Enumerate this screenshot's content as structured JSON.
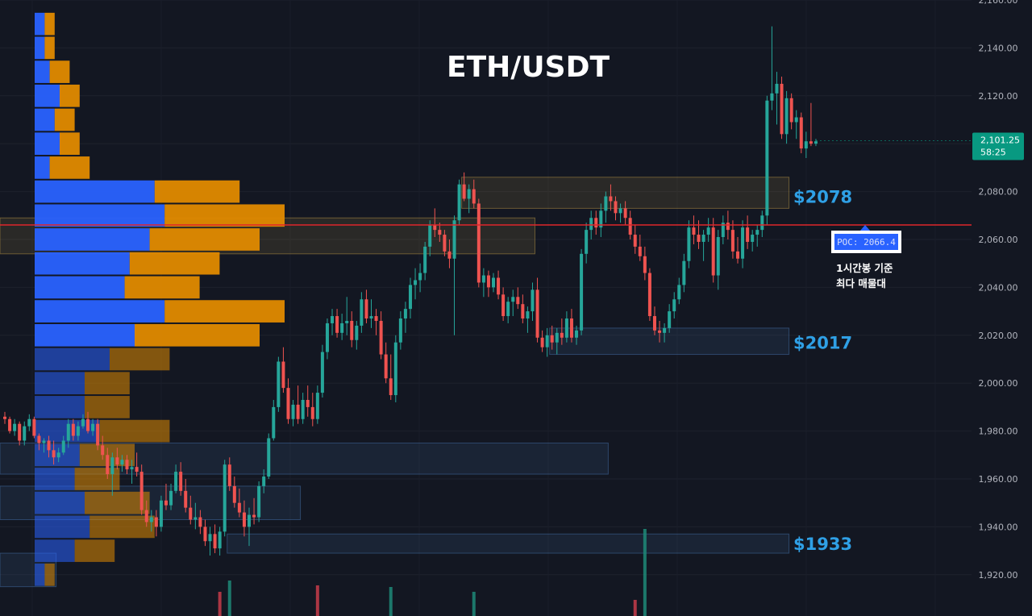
{
  "chart_data": {
    "type": "candlestick",
    "title": "ETH/USDT",
    "symbol": "ETH/USDT",
    "ylim": [
      1910,
      2160
    ],
    "y_ticks": [
      "2,160.00",
      "2,140.00",
      "2,120.00",
      "2,100.00",
      "2,080.00",
      "2,060.00",
      "2,040.00",
      "2,020.00",
      "2,000.00",
      "1,980.00",
      "1,960.00",
      "1,940.00",
      "1,920.00"
    ],
    "y_tick_values": [
      2160,
      2140,
      2120,
      2100,
      2080,
      2060,
      2040,
      2020,
      2000,
      1980,
      1960,
      1940,
      1920
    ],
    "grid": true,
    "current_price": {
      "label": "2,101.25",
      "timer": "58:25",
      "value": 2101.25,
      "color": "#089981"
    },
    "poc": {
      "label": "POC: 2066.4",
      "value": 2066.4,
      "note_line1": "1시간봉 기준",
      "note_line2": "최다 매물대"
    },
    "zone_labels": [
      {
        "text": "$2078",
        "value": 2078
      },
      {
        "text": "$2017",
        "value": 2017
      },
      {
        "text": "$1933",
        "value": 1933
      }
    ],
    "zones": [
      {
        "top": 2086,
        "bottom": 2073,
        "x_from_candle": 94,
        "x_to_candle": 160,
        "color": "#c9a34a"
      },
      {
        "top": 2069,
        "bottom": 2054,
        "x_from_candle": 0,
        "x_to_candle": 108,
        "color": "#c9a34a"
      },
      {
        "top": 2023,
        "bottom": 2012,
        "x_from_candle": 112,
        "x_to_candle": 160,
        "color": "#4a7ab8"
      },
      {
        "top": 1975,
        "bottom": 1962,
        "x_from_candle": 0,
        "x_to_candle": 123,
        "color": "#4a7ab8"
      },
      {
        "top": 1957,
        "bottom": 1943,
        "x_from_candle": 0,
        "x_to_candle": 60,
        "color": "#4a7ab8"
      },
      {
        "top": 1937,
        "bottom": 1929,
        "x_from_candle": 46,
        "x_to_candle": 160,
        "color": "#4a7ab8"
      },
      {
        "top": 1929,
        "bottom": 1915,
        "x_from_candle": 0,
        "x_to_candle": 10,
        "color": "#4a7ab8"
      }
    ],
    "volume_profile": {
      "bucket_size": 10,
      "price_low": 1915,
      "price_high": 2155,
      "rows_from_bottom": [
        {
          "buy": 2,
          "sell": 2
        },
        {
          "buy": 8,
          "sell": 8
        },
        {
          "buy": 11,
          "sell": 13
        },
        {
          "buy": 10,
          "sell": 13
        },
        {
          "buy": 8,
          "sell": 9
        },
        {
          "buy": 9,
          "sell": 11
        },
        {
          "buy": 13,
          "sell": 14
        },
        {
          "buy": 10,
          "sell": 9
        },
        {
          "buy": 10,
          "sell": 9
        },
        {
          "buy": 15,
          "sell": 12
        },
        {
          "buy": 20,
          "sell": 25
        },
        {
          "buy": 26,
          "sell": 24
        },
        {
          "buy": 18,
          "sell": 15
        },
        {
          "buy": 19,
          "sell": 18
        },
        {
          "buy": 23,
          "sell": 22
        },
        {
          "buy": 26,
          "sell": 24
        },
        {
          "buy": 24,
          "sell": 17
        },
        {
          "buy": 3,
          "sell": 8
        },
        {
          "buy": 5,
          "sell": 4
        },
        {
          "buy": 4,
          "sell": 4
        },
        {
          "buy": 5,
          "sell": 4
        },
        {
          "buy": 3,
          "sell": 4
        },
        {
          "buy": 2,
          "sell": 2
        },
        {
          "buy": 2,
          "sell": 2
        }
      ]
    },
    "candles": [
      [
        1986,
        1988,
        1983,
        1985
      ],
      [
        1985,
        1986,
        1979,
        1980
      ],
      [
        1980,
        1985,
        1978,
        1983
      ],
      [
        1983,
        1984,
        1974,
        1976
      ],
      [
        1976,
        1984,
        1974,
        1982
      ],
      [
        1982,
        1987,
        1980,
        1985
      ],
      [
        1985,
        1986,
        1977,
        1978
      ],
      [
        1978,
        1979,
        1972,
        1975
      ],
      [
        1975,
        1977,
        1971,
        1976
      ],
      [
        1976,
        1978,
        1969,
        1972
      ],
      [
        1972,
        1976,
        1966,
        1969
      ],
      [
        1969,
        1973,
        1967,
        1971
      ],
      [
        1971,
        1978,
        1970,
        1976
      ],
      [
        1976,
        1985,
        1973,
        1983
      ],
      [
        1983,
        1985,
        1976,
        1978
      ],
      [
        1978,
        1984,
        1976,
        1982
      ],
      [
        1982,
        1987,
        1981,
        1985
      ],
      [
        1985,
        1988,
        1979,
        1980
      ],
      [
        1980,
        1985,
        1978,
        1983
      ],
      [
        1983,
        1985,
        1972,
        1974
      ],
      [
        1974,
        1978,
        1968,
        1970
      ],
      [
        1970,
        1973,
        1960,
        1962
      ],
      [
        1962,
        1971,
        1953,
        1969
      ],
      [
        1969,
        1973,
        1964,
        1966
      ],
      [
        1966,
        1970,
        1963,
        1968
      ],
      [
        1968,
        1970,
        1962,
        1964
      ],
      [
        1964,
        1968,
        1958,
        1965
      ],
      [
        1965,
        1971,
        1961,
        1963
      ],
      [
        1963,
        1966,
        1945,
        1947
      ],
      [
        1947,
        1951,
        1940,
        1942
      ],
      [
        1942,
        1947,
        1938,
        1944
      ],
      [
        1944,
        1947,
        1936,
        1940
      ],
      [
        1940,
        1953,
        1938,
        1951
      ],
      [
        1951,
        1958,
        1947,
        1949
      ],
      [
        1949,
        1958,
        1947,
        1955
      ],
      [
        1955,
        1966,
        1954,
        1963
      ],
      [
        1963,
        1967,
        1953,
        1955
      ],
      [
        1955,
        1960,
        1946,
        1948
      ],
      [
        1948,
        1953,
        1941,
        1943
      ],
      [
        1943,
        1950,
        1939,
        1944
      ],
      [
        1944,
        1947,
        1937,
        1940
      ],
      [
        1940,
        1943,
        1932,
        1934
      ],
      [
        1934,
        1940,
        1928,
        1937
      ],
      [
        1937,
        1941,
        1929,
        1931
      ],
      [
        1931,
        1940,
        1928,
        1938
      ],
      [
        1938,
        1968,
        1936,
        1966
      ],
      [
        1966,
        1969,
        1955,
        1957
      ],
      [
        1957,
        1961,
        1948,
        1950
      ],
      [
        1950,
        1956,
        1944,
        1946
      ],
      [
        1946,
        1951,
        1936,
        1940
      ],
      [
        1940,
        1948,
        1932,
        1945
      ],
      [
        1945,
        1952,
        1941,
        1944
      ],
      [
        1944,
        1959,
        1942,
        1957
      ],
      [
        1957,
        1964,
        1954,
        1961
      ],
      [
        1961,
        1979,
        1960,
        1977
      ],
      [
        1977,
        1993,
        1976,
        1990
      ],
      [
        1990,
        2011,
        1988,
        2009
      ],
      [
        2009,
        2015,
        1996,
        1998
      ],
      [
        1998,
        2002,
        1983,
        1985
      ],
      [
        1985,
        1993,
        1982,
        1991
      ],
      [
        1991,
        1999,
        1983,
        1985
      ],
      [
        1985,
        1996,
        1983,
        1993
      ],
      [
        1993,
        1999,
        1986,
        1990
      ],
      [
        1990,
        1996,
        1982,
        1985
      ],
      [
        1985,
        1999,
        1983,
        1996
      ],
      [
        1996,
        2016,
        1994,
        2013
      ],
      [
        2013,
        2027,
        2010,
        2025
      ],
      [
        2025,
        2031,
        2020,
        2028
      ],
      [
        2028,
        2031,
        2019,
        2021
      ],
      [
        2021,
        2029,
        2018,
        2025
      ],
      [
        2025,
        2036,
        2020,
        2026
      ],
      [
        2026,
        2030,
        2015,
        2018
      ],
      [
        2018,
        2026,
        2014,
        2024
      ],
      [
        2024,
        2038,
        2021,
        2035
      ],
      [
        2035,
        2039,
        2025,
        2027
      ],
      [
        2027,
        2035,
        2023,
        2028
      ],
      [
        2028,
        2031,
        2020,
        2026
      ],
      [
        2026,
        2030,
        2010,
        2012
      ],
      [
        2012,
        2017,
        2000,
        2002
      ],
      [
        2002,
        2012,
        1993,
        1995
      ],
      [
        1995,
        2020,
        1992,
        2017
      ],
      [
        2017,
        2030,
        2014,
        2027
      ],
      [
        2027,
        2034,
        2021,
        2031
      ],
      [
        2031,
        2044,
        2027,
        2041
      ],
      [
        2041,
        2048,
        2035,
        2043
      ],
      [
        2043,
        2050,
        2038,
        2046
      ],
      [
        2046,
        2059,
        2043,
        2057
      ],
      [
        2057,
        2068,
        2053,
        2066
      ],
      [
        2066,
        2073,
        2061,
        2064
      ],
      [
        2064,
        2067,
        2059,
        2062
      ],
      [
        2062,
        2064,
        2053,
        2055
      ],
      [
        2055,
        2060,
        2048,
        2052
      ],
      [
        2052,
        2070,
        2020,
        2068
      ],
      [
        2068,
        2085,
        2066,
        2083
      ],
      [
        2083,
        2088,
        2076,
        2077
      ],
      [
        2077,
        2083,
        2071,
        2081
      ],
      [
        2081,
        2085,
        2073,
        2075
      ],
      [
        2075,
        2077,
        2040,
        2042
      ],
      [
        2042,
        2048,
        2036,
        2045
      ],
      [
        2045,
        2047,
        2036,
        2040
      ],
      [
        2040,
        2046,
        2038,
        2044
      ],
      [
        2044,
        2047,
        2035,
        2037
      ],
      [
        2037,
        2040,
        2026,
        2028
      ],
      [
        2028,
        2036,
        2025,
        2034
      ],
      [
        2034,
        2039,
        2028,
        2036
      ],
      [
        2036,
        2040,
        2031,
        2033
      ],
      [
        2033,
        2037,
        2025,
        2027
      ],
      [
        2027,
        2032,
        2021,
        2030
      ],
      [
        2030,
        2042,
        2026,
        2039
      ],
      [
        2039,
        2044,
        2017,
        2019
      ],
      [
        2019,
        2022,
        2013,
        2015
      ],
      [
        2015,
        2023,
        2011,
        2020
      ],
      [
        2020,
        2024,
        2014,
        2017
      ],
      [
        2017,
        2023,
        2012,
        2021
      ],
      [
        2021,
        2027,
        2016,
        2019
      ],
      [
        2019,
        2030,
        2017,
        2027
      ],
      [
        2027,
        2031,
        2017,
        2019
      ],
      [
        2019,
        2024,
        2016,
        2022
      ],
      [
        2022,
        2056,
        2020,
        2054
      ],
      [
        2054,
        2067,
        2050,
        2064
      ],
      [
        2064,
        2072,
        2060,
        2069
      ],
      [
        2069,
        2072,
        2062,
        2065
      ],
      [
        2065,
        2075,
        2061,
        2072
      ],
      [
        2072,
        2080,
        2067,
        2078
      ],
      [
        2078,
        2083,
        2072,
        2076
      ],
      [
        2076,
        2078,
        2068,
        2071
      ],
      [
        2071,
        2075,
        2067,
        2073
      ],
      [
        2073,
        2076,
        2066,
        2069
      ],
      [
        2069,
        2072,
        2060,
        2062
      ],
      [
        2062,
        2066,
        2054,
        2057
      ],
      [
        2057,
        2062,
        2051,
        2053
      ],
      [
        2053,
        2057,
        2043,
        2046
      ],
      [
        2046,
        2048,
        2026,
        2028
      ],
      [
        2028,
        2032,
        2020,
        2022
      ],
      [
        2022,
        2026,
        2017,
        2021
      ],
      [
        2021,
        2025,
        2017,
        2023
      ],
      [
        2023,
        2033,
        2021,
        2030
      ],
      [
        2030,
        2038,
        2027,
        2035
      ],
      [
        2035,
        2044,
        2033,
        2041
      ],
      [
        2041,
        2054,
        2038,
        2051
      ],
      [
        2051,
        2068,
        2048,
        2065
      ],
      [
        2065,
        2070,
        2058,
        2062
      ],
      [
        2062,
        2068,
        2056,
        2059
      ],
      [
        2059,
        2064,
        2051,
        2062
      ],
      [
        2062,
        2069,
        2059,
        2065
      ],
      [
        2065,
        2069,
        2042,
        2045
      ],
      [
        2045,
        2064,
        2039,
        2061
      ],
      [
        2061,
        2070,
        2058,
        2067
      ],
      [
        2067,
        2072,
        2060,
        2064
      ],
      [
        2064,
        2068,
        2052,
        2055
      ],
      [
        2055,
        2061,
        2050,
        2052
      ],
      [
        2052,
        2068,
        2048,
        2065
      ],
      [
        2065,
        2070,
        2056,
        2059
      ],
      [
        2059,
        2064,
        2055,
        2062
      ],
      [
        2062,
        2066,
        2057,
        2064
      ],
      [
        2064,
        2072,
        2061,
        2070
      ],
      [
        2070,
        2120,
        2066,
        2118
      ],
      [
        2118,
        2149,
        2114,
        2121
      ],
      [
        2121,
        2130,
        2108,
        2125
      ],
      [
        2125,
        2128,
        2102,
        2104
      ],
      [
        2104,
        2122,
        2100,
        2119
      ],
      [
        2119,
        2121,
        2106,
        2109
      ],
      [
        2109,
        2114,
        2102,
        2111
      ],
      [
        2111,
        2113,
        2096,
        2098
      ],
      [
        2098,
        2105,
        2094,
        2101
      ],
      [
        2101,
        2117,
        2099,
        2100
      ],
      [
        2100,
        2102,
        2099,
        2101
      ]
    ],
    "volume_bars": [
      {
        "candle": 44,
        "height": 30,
        "color": "#c83c4a"
      },
      {
        "candle": 46,
        "height": 44,
        "color": "#1f8a78"
      },
      {
        "candle": 64,
        "height": 38,
        "color": "#c83c4a"
      },
      {
        "candle": 79,
        "height": 36,
        "color": "#1f8a78"
      },
      {
        "candle": 96,
        "height": 30,
        "color": "#1f8a78"
      },
      {
        "candle": 129,
        "height": 20,
        "color": "#c83c4a"
      },
      {
        "candle": 131,
        "height": 108,
        "color": "#1f8a78"
      }
    ]
  }
}
